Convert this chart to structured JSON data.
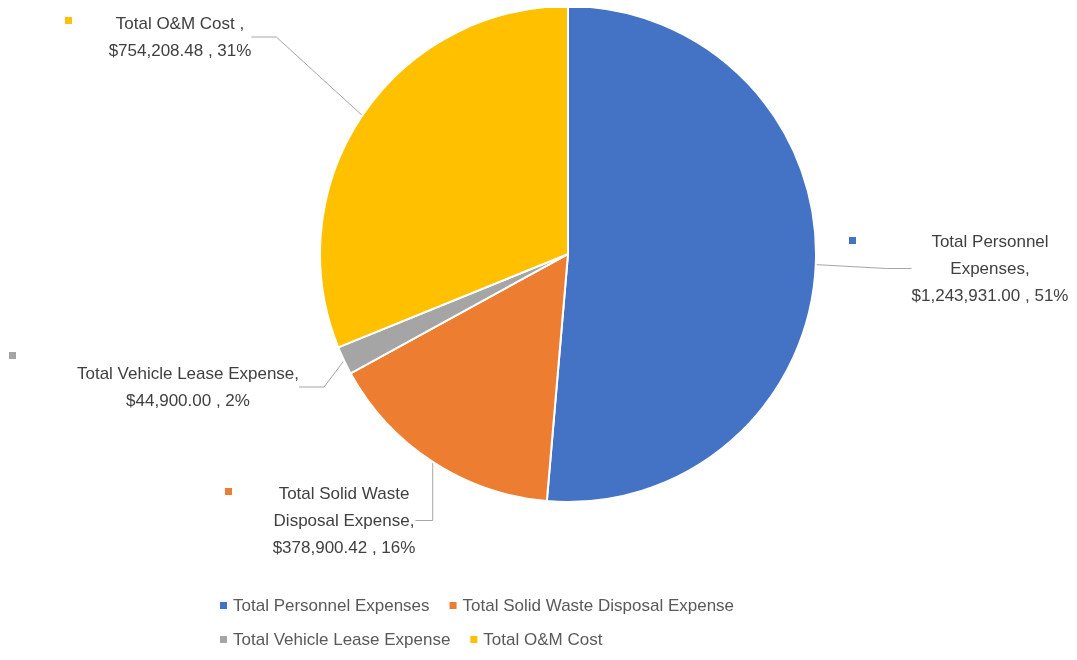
{
  "chart_data": {
    "type": "pie",
    "categories": [
      "Total Personnel Expenses",
      "Total Solid Waste Disposal Expense",
      "Total Vehicle Lease Expense",
      "Total O&M Cost"
    ],
    "values": [
      1243931.0,
      378900.42,
      44900.0,
      754208.48
    ],
    "colors": [
      "#4472c4",
      "#ed7d31",
      "#a5a5a5",
      "#ffc000"
    ],
    "value_labels": [
      "Total Personnel\nExpenses,\n$1,243,931.00 , 51%",
      "Total Solid Waste\nDisposal Expense,\n$378,900.42 , 16%",
      "Total Vehicle Lease Expense,\n$44,900.00 , 2%",
      "Total O&M Cost ,\n$754,208.48 , 31%"
    ],
    "legend": "bottom"
  }
}
